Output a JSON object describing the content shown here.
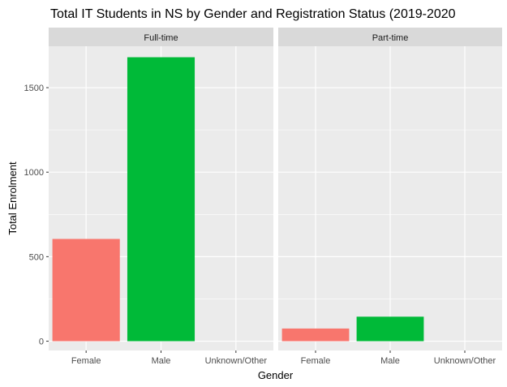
{
  "chart_data": {
    "type": "bar",
    "title": "Total IT Students in NS by Gender and Registration Status (2019-2020",
    "xlabel": "Gender",
    "ylabel": "Total Enrolment",
    "ylim": [
      -55,
      1745
    ],
    "yticks": [
      0,
      500,
      1000,
      1500
    ],
    "grid": true,
    "legend": "none",
    "categories": [
      "Female",
      "Male",
      "Unknown/Other"
    ],
    "colors": {
      "Female": "#F8766D",
      "Male": "#00BA38",
      "Unknown/Other": "#619CFF"
    },
    "panel_background": "#EBEBEB",
    "strip_background": "#D9D9D9",
    "panels": [
      {
        "label": "Full-time",
        "values": [
          605,
          1680,
          0
        ]
      },
      {
        "label": "Part-time",
        "values": [
          75,
          145,
          0
        ]
      }
    ]
  }
}
